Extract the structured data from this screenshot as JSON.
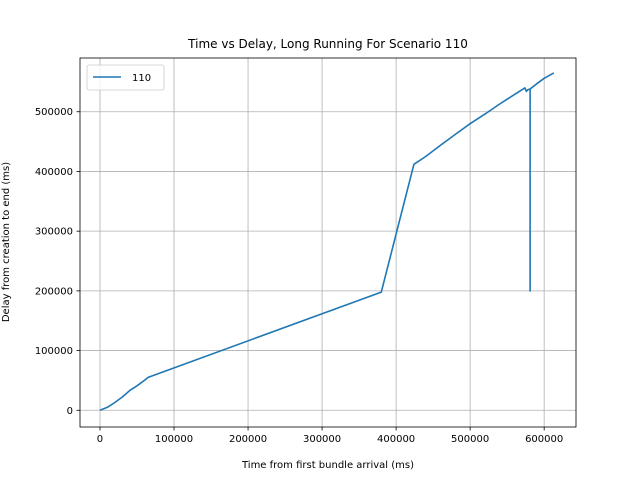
{
  "chart_data": {
    "type": "line",
    "title": "Time vs Delay, Long Running For Scenario 110",
    "xlabel": "Time from first bundle arrival (ms)",
    "ylabel": "Delay from creation to end (ms)",
    "xlim": [
      -27000,
      643000
    ],
    "ylim": [
      -28000,
      590000
    ],
    "x_ticks": [
      0,
      100000,
      200000,
      300000,
      400000,
      500000,
      600000
    ],
    "x_tick_labels": [
      "0",
      "100000",
      "200000",
      "300000",
      "400000",
      "500000",
      "600000"
    ],
    "y_ticks": [
      0,
      100000,
      200000,
      300000,
      400000,
      500000
    ],
    "y_tick_labels": [
      "0",
      "100000",
      "200000",
      "300000",
      "400000",
      "500000"
    ],
    "grid": true,
    "legend_position": "top-left",
    "series": [
      {
        "name": "110",
        "color": "#1f77b4",
        "points": [
          [
            0,
            0
          ],
          [
            10000,
            5000
          ],
          [
            20000,
            13000
          ],
          [
            30000,
            22000
          ],
          [
            40000,
            33000
          ],
          [
            50000,
            41000
          ],
          [
            60000,
            50000
          ],
          [
            65000,
            55000
          ],
          [
            380000,
            198000
          ],
          [
            424000,
            412000
          ],
          [
            440000,
            425000
          ],
          [
            460000,
            444000
          ],
          [
            480000,
            462000
          ],
          [
            500000,
            480000
          ],
          [
            520000,
            496000
          ],
          [
            540000,
            513000
          ],
          [
            560000,
            529000
          ],
          [
            574000,
            540000
          ],
          [
            576000,
            534000
          ],
          [
            578000,
            537000
          ],
          [
            581000,
            538000
          ],
          [
            581000,
            200000
          ],
          [
            581000,
            538000
          ],
          [
            590000,
            547000
          ],
          [
            600000,
            556000
          ],
          [
            613000,
            565000
          ]
        ]
      }
    ]
  }
}
